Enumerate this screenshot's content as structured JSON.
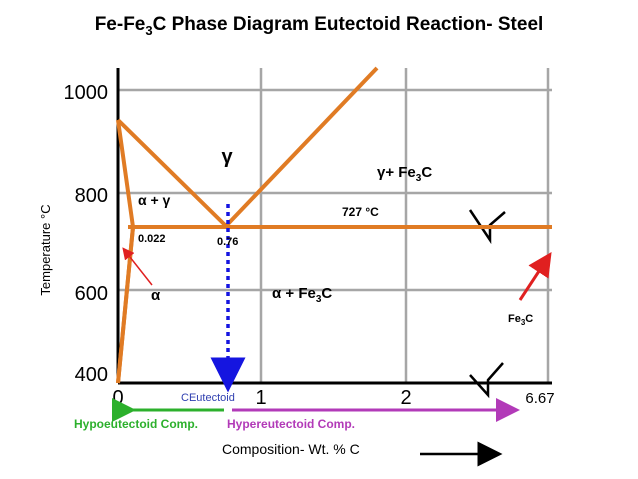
{
  "title": {
    "main": "Fe-Fe",
    "sub": "3",
    "rest": "C Phase Diagram Eutectoid Reaction- Steel"
  },
  "axes": {
    "y_label": "Temperature °C",
    "y_ticks": [
      "1000",
      "800",
      "600",
      "400"
    ],
    "x_ticks": [
      "0",
      "1",
      "2",
      "6.67"
    ],
    "x_label": "Composition- Wt. % C"
  },
  "regions": {
    "gamma": "γ",
    "alpha_gamma": "α + γ",
    "alpha": "α",
    "alpha_fe3c_pre": "α + Fe",
    "alpha_fe3c_sub": "3",
    "alpha_fe3c_post": "C",
    "gamma_fe3c_pre": "γ+ Fe",
    "gamma_fe3c_sub": "3",
    "gamma_fe3c_post": "C",
    "fe3c_pre": "Fe",
    "fe3c_sub": "3",
    "fe3c_post": "C"
  },
  "annotations": {
    "eutectoid_temp": "727 °C",
    "alpha_solubility": "0.022",
    "eutectoid_comp": "0.76",
    "c_eutectoid": "CEutectoid"
  },
  "compositions": {
    "hypo": "Hypoeutectoid Comp.",
    "hyper": "Hypereutectoid Comp."
  },
  "colors": {
    "phase_lines": "#E07B24",
    "grid": "#A6A6A6",
    "axis": "#000000",
    "eutectoid_dash": "#1515E0",
    "ceutectoid_text": "#2F3FB0",
    "hypo": "#2CB02C",
    "hyper": "#B23AB8",
    "arrow_red": "#E02020"
  }
}
